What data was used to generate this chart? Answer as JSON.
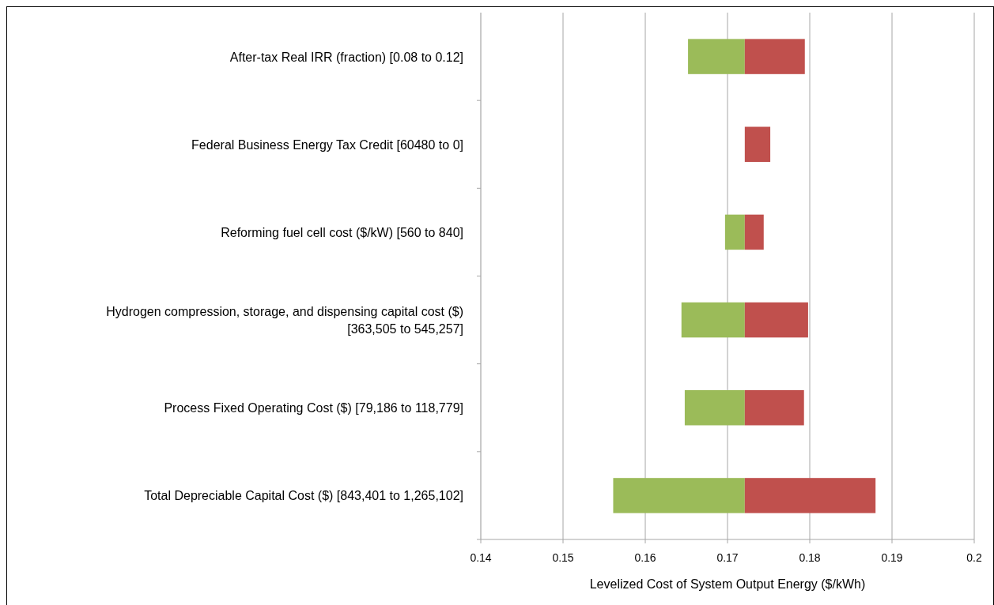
{
  "chart_data": {
    "type": "bar",
    "orientation": "horizontal",
    "categories": [
      "After-tax Real IRR (fraction) [0.08 to 0.12]",
      "Federal Business Energy Tax Credit [60480 to 0]",
      "Reforming fuel cell cost ($/kW) [560 to 840]",
      "Hydrogen compression, storage, and dispensing capital cost ($) [363,505 to 545,257]",
      "Process Fixed Operating Cost ($) [79,186 to 118,779]",
      "Total Depreciable Capital Cost ($) [843,401 to 1,265,102]"
    ],
    "series": [
      {
        "color": "#9bbb59",
        "base": [
          0.1652,
          null,
          0.1697,
          0.1644,
          0.1648,
          0.1561
        ],
        "values": [
          0.0069,
          null,
          0.0024,
          0.0077,
          0.0073,
          0.016
        ]
      },
      {
        "color": "#c0504d",
        "base": [
          0.1721,
          0.1721,
          0.1721,
          0.1721,
          0.1721,
          0.1721
        ],
        "values": [
          0.0073,
          0.0031,
          0.0023,
          0.0077,
          0.0072,
          0.0159
        ]
      }
    ],
    "xlabel": "Levelized Cost of System Output Energy ($/kWh)",
    "xlim": [
      0.14,
      0.2
    ],
    "xticks": [
      0.14,
      0.15,
      0.16,
      0.17,
      0.18,
      0.19,
      0.2
    ],
    "grid": "x"
  }
}
